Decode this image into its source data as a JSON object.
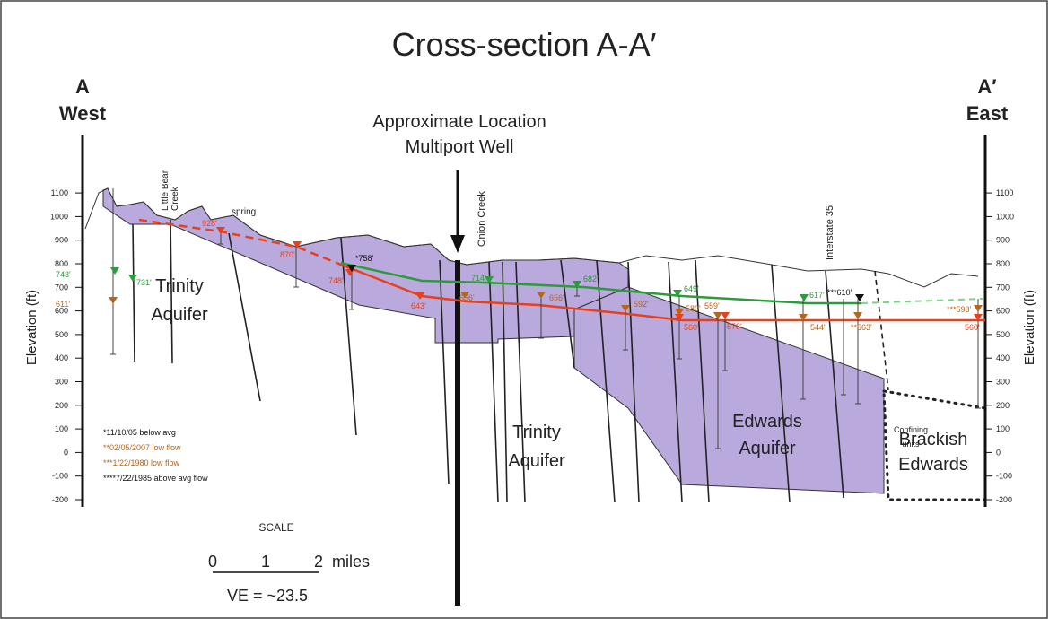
{
  "title": "Cross-section A-A′",
  "ends": {
    "west": {
      "letter": "A",
      "label": "West"
    },
    "east": {
      "letter": "A′",
      "label": "East"
    }
  },
  "well_label": [
    "Approximate Location",
    "Multiport Well"
  ],
  "axis": {
    "label": "Elevation (ft)",
    "ticks": [
      1100,
      1000,
      900,
      800,
      700,
      600,
      500,
      400,
      300,
      200,
      100,
      0,
      -100,
      -200
    ]
  },
  "features": {
    "little_bear": [
      "Little Bear",
      "Creek"
    ],
    "spring": "spring",
    "onion": "Onion Creek",
    "interstate": "Interstate 35"
  },
  "units": [
    [
      "Trinity",
      "Aquifer"
    ],
    [
      "Trinity",
      "Aquifer"
    ],
    [
      "Edwards",
      "Aquifer"
    ],
    [
      "Brackish",
      "Edwards"
    ],
    [
      "Confining",
      "units"
    ]
  ],
  "water_levels": [
    "743'",
    "731'",
    "611'",
    "928'",
    "870'",
    "748'",
    "*758'",
    "714'",
    "656'",
    "643'",
    "656'",
    "682'",
    "592'",
    "649'",
    "580'",
    "559'",
    "560'",
    "578'",
    "617'",
    "544'",
    "***610'",
    "**563'",
    "***598'",
    "560'"
  ],
  "legend": [
    "*11/10/05 below avg",
    "**02/05/2007 low flow",
    "***1/22/1980 low flow",
    "****7/22/1985 above avg flow"
  ],
  "scale": {
    "title": "SCALE",
    "ticks": [
      0,
      1,
      2
    ],
    "unit": "miles",
    "ve": "VE = ~23.5"
  }
}
